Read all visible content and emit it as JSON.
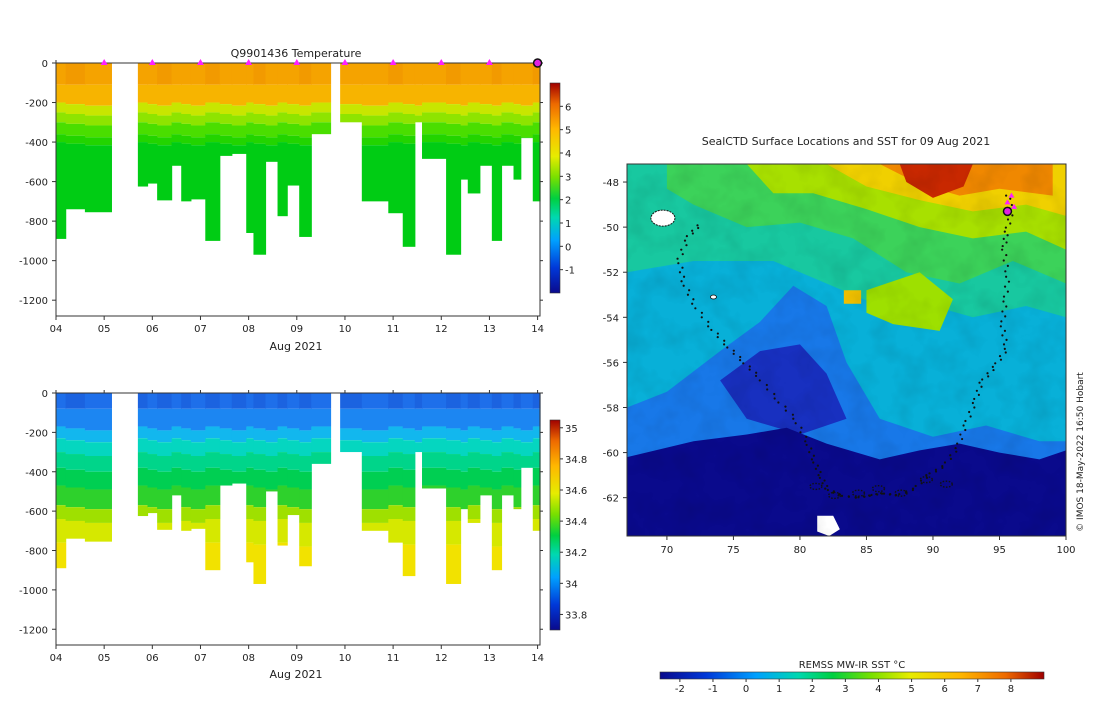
{
  "chart_data": [
    {
      "type": "heatmap",
      "title": "Q9901436  Temperature",
      "xlabel": "Aug 2021",
      "ylabel": "",
      "x_ticks": [
        "04",
        "05",
        "06",
        "07",
        "08",
        "09",
        "10",
        "11",
        "12",
        "13",
        "14"
      ],
      "x_range": [
        4,
        14.05
      ],
      "y_ticks": [
        0,
        -200,
        -400,
        -600,
        -800,
        -1000,
        -1200
      ],
      "y_range": [
        0,
        -1280
      ],
      "colorbar": {
        "min": -2,
        "max": 7,
        "ticks": [
          6,
          5,
          4,
          3,
          2,
          1,
          0,
          -1
        ]
      },
      "surface_markers": [
        5,
        6,
        7,
        8,
        9,
        10,
        11,
        12,
        13,
        14
      ]
    },
    {
      "type": "heatmap",
      "title": "",
      "xlabel": "Aug 2021",
      "ylabel": "",
      "x_ticks": [
        "04",
        "05",
        "06",
        "07",
        "08",
        "09",
        "10",
        "11",
        "12",
        "13",
        "14"
      ],
      "x_range": [
        4,
        14.05
      ],
      "y_ticks": [
        0,
        -200,
        -400,
        -600,
        -800,
        -1000,
        -1200
      ],
      "y_range": [
        0,
        -1280
      ],
      "colorbar": {
        "min": 33.7,
        "max": 35.05,
        "ticks": [
          35,
          34.8,
          34.6,
          34.4,
          34.2,
          34,
          33.8
        ]
      }
    },
    {
      "type": "heatmap",
      "title": "SealCTD Surface Locations and SST for 09 Aug 2021",
      "xlabel": "",
      "ylabel": "",
      "x_ticks": [
        70,
        75,
        80,
        85,
        90,
        95,
        100
      ],
      "x_range": [
        67,
        100
      ],
      "y_ticks": [
        -48,
        -50,
        -52,
        -54,
        -56,
        -58,
        -60,
        -62
      ],
      "y_range": [
        -47.2,
        -63.7
      ],
      "colorbar": {
        "label": "REMSS MW-IR SST °C",
        "min": -2.6,
        "max": 9,
        "ticks": [
          -2,
          -1,
          0,
          1,
          2,
          3,
          4,
          5,
          6,
          7,
          8
        ]
      },
      "credit": "© IMOS 18-May-2022 16:50 Hobart"
    }
  ],
  "profiles": [
    {
      "t0": 4.0,
      "t1": 4.2,
      "d": 890
    },
    {
      "t0": 4.2,
      "t1": 4.6,
      "d": 740
    },
    {
      "t0": 4.6,
      "t1": 5.15,
      "d": 755
    },
    {
      "t0": 5.7,
      "t1": 5.9,
      "d": 625
    },
    {
      "t0": 5.9,
      "t1": 6.1,
      "d": 610
    },
    {
      "t0": 6.1,
      "t1": 6.4,
      "d": 695
    },
    {
      "t0": 6.4,
      "t1": 6.6,
      "d": 520
    },
    {
      "t0": 6.6,
      "t1": 6.8,
      "d": 700
    },
    {
      "t0": 6.8,
      "t1": 7.1,
      "d": 690
    },
    {
      "t0": 7.1,
      "t1": 7.4,
      "d": 900
    },
    {
      "t0": 7.4,
      "t1": 7.65,
      "d": 470
    },
    {
      "t0": 7.65,
      "t1": 7.95,
      "d": 460
    },
    {
      "t0": 7.95,
      "t1": 8.1,
      "d": 860
    },
    {
      "t0": 8.1,
      "t1": 8.35,
      "d": 970
    },
    {
      "t0": 8.35,
      "t1": 8.6,
      "d": 500
    },
    {
      "t0": 8.6,
      "t1": 8.8,
      "d": 775
    },
    {
      "t0": 8.8,
      "t1": 9.05,
      "d": 620
    },
    {
      "t0": 9.05,
      "t1": 9.3,
      "d": 880
    },
    {
      "t0": 9.3,
      "t1": 9.7,
      "d": 360
    },
    {
      "t0": 9.9,
      "t1": 10.35,
      "d": 300
    },
    {
      "t0": 10.35,
      "t1": 10.9,
      "d": 700
    },
    {
      "t0": 10.9,
      "t1": 11.2,
      "d": 760
    },
    {
      "t0": 11.2,
      "t1": 11.45,
      "d": 930
    },
    {
      "t0": 11.45,
      "t1": 11.6,
      "d": 300
    },
    {
      "t0": 11.6,
      "t1": 12.1,
      "d": 485
    },
    {
      "t0": 12.1,
      "t1": 12.4,
      "d": 970
    },
    {
      "t0": 12.4,
      "t1": 12.55,
      "d": 590
    },
    {
      "t0": 12.55,
      "t1": 12.8,
      "d": 660
    },
    {
      "t0": 12.8,
      "t1": 13.05,
      "d": 520
    },
    {
      "t0": 13.05,
      "t1": 13.25,
      "d": 900
    },
    {
      "t0": 13.25,
      "t1": 13.5,
      "d": 520
    },
    {
      "t0": 13.5,
      "t1": 13.65,
      "d": 590
    },
    {
      "t0": 13.65,
      "t1": 13.9,
      "d": 380
    },
    {
      "t0": 13.9,
      "t1": 14.05,
      "d": 700
    }
  ],
  "track": [
    [
      95.6,
      -48.6
    ],
    [
      95.9,
      -49.3
    ],
    [
      95.5,
      -50.2
    ],
    [
      95.3,
      -51
    ],
    [
      95.6,
      -52.2
    ],
    [
      95.4,
      -53.3
    ],
    [
      95.2,
      -54.4
    ],
    [
      95.5,
      -55.4
    ],
    [
      94.6,
      -56.2
    ],
    [
      93.6,
      -56.9
    ],
    [
      93.1,
      -57.8
    ],
    [
      92.4,
      -58.8
    ],
    [
      91.8,
      -59.8
    ],
    [
      90.8,
      -60.6
    ],
    [
      89.6,
      -61
    ],
    [
      88.6,
      -61.6
    ],
    [
      87.3,
      -61.9
    ],
    [
      86.2,
      -61.8
    ],
    [
      85.3,
      -61.9
    ],
    [
      84.3,
      -62
    ],
    [
      83,
      -61.9
    ],
    [
      82,
      -61.6
    ],
    [
      81.5,
      -61
    ],
    [
      81,
      -60.3
    ],
    [
      80.5,
      -59.5
    ],
    [
      79.6,
      -58.5
    ],
    [
      78.2,
      -57.6
    ],
    [
      76.8,
      -56.6
    ],
    [
      75.6,
      -55.9
    ],
    [
      74.4,
      -55.2
    ],
    [
      73.2,
      -54.4
    ],
    [
      72,
      -53.4
    ],
    [
      71.2,
      -52.4
    ],
    [
      70.9,
      -51.4
    ],
    [
      71.6,
      -50.4
    ],
    [
      72.6,
      -49.8
    ]
  ]
}
